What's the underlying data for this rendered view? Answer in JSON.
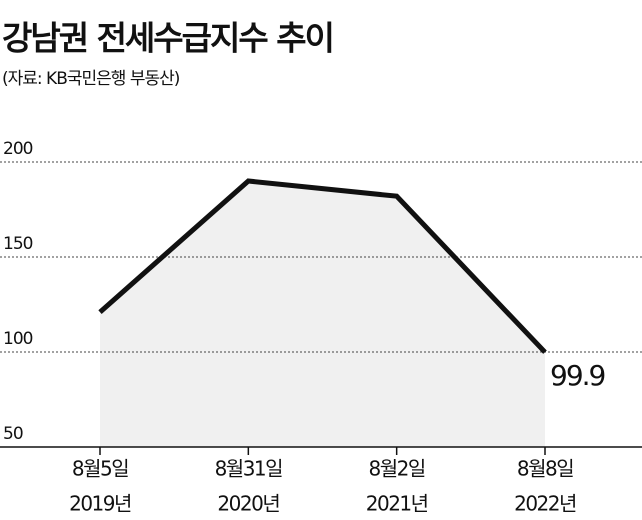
{
  "chart_data": {
    "type": "line",
    "title": "강남권 전세수급지수 추이",
    "subtitle": "(자료: KB국민은행 부동산)",
    "categories": [
      [
        "8월5일",
        "2019년"
      ],
      [
        "8월31일",
        "2020년"
      ],
      [
        "8월2일",
        "2021년"
      ],
      [
        "8월8일",
        "2022년"
      ]
    ],
    "values": [
      121,
      190,
      182,
      99.9
    ],
    "color": "#111111",
    "area_color": "#f0f0f0",
    "ylim": [
      50,
      210
    ],
    "yticks": [
      50,
      100,
      150,
      200
    ],
    "grid": true
  }
}
